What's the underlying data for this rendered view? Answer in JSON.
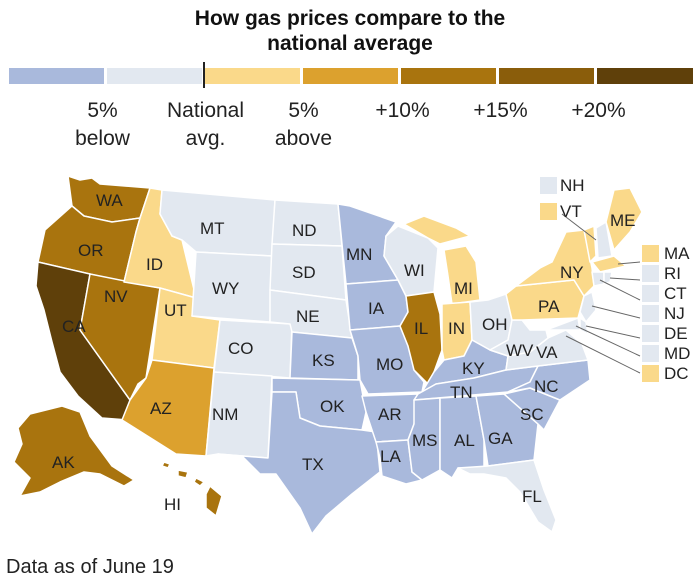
{
  "title_line1": "How gas prices compare to the",
  "title_line2": "national average",
  "footer": "Data as of June 19",
  "colors": {
    "below5": "#a9b9dc",
    "national": "#e2e8f0",
    "above5": "#fad98a",
    "plus10": "#dca12e",
    "plus15": "#a9740e",
    "plus20a": "#8a5d0b",
    "plus20b": "#5f400a"
  },
  "legend": [
    {
      "line1": "5%",
      "line2": "below"
    },
    {
      "line1": "National",
      "line2": "avg."
    },
    {
      "line1": "5%",
      "line2": "above"
    },
    {
      "line1": "+10%",
      "line2": ""
    },
    {
      "line1": "+15%",
      "line2": ""
    },
    {
      "line1": "+20%",
      "line2": ""
    }
  ],
  "states": {
    "WA": "WA",
    "OR": "OR",
    "CA": "CA",
    "NV": "NV",
    "ID": "ID",
    "UT": "UT",
    "AZ": "AZ",
    "MT": "MT",
    "WY": "WY",
    "CO": "CO",
    "NM": "NM",
    "ND": "ND",
    "SD": "SD",
    "NE": "NE",
    "KS": "KS",
    "OK": "OK",
    "TX": "TX",
    "MN": "MN",
    "IA": "IA",
    "MO": "MO",
    "AR": "AR",
    "LA": "LA",
    "WI": "WI",
    "IL": "IL",
    "MI": "MI",
    "IN": "IN",
    "OH": "OH",
    "KY": "KY",
    "TN": "TN",
    "MS": "MS",
    "AL": "AL",
    "GA": "GA",
    "FL": "FL",
    "SC": "SC",
    "NC": "NC",
    "VA": "VA",
    "WV": "WV",
    "PA": "PA",
    "NY": "NY",
    "ME": "ME",
    "AK": "AK",
    "HI": "HI"
  },
  "northeast_boxes": {
    "NH": "NH",
    "VT": "VT",
    "MA": "MA",
    "RI": "RI",
    "CT": "CT",
    "NJ": "NJ",
    "DE": "DE",
    "MD": "MD",
    "DC": "DC"
  }
}
